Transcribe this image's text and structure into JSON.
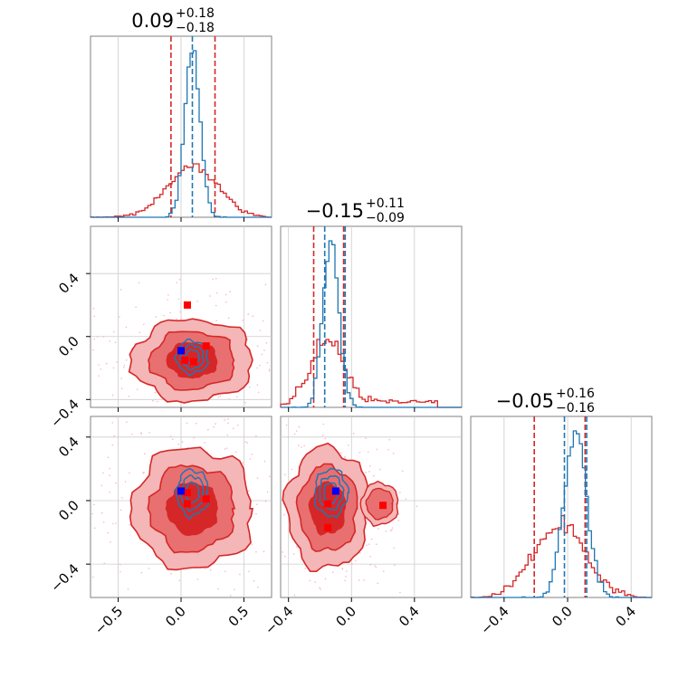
{
  "chart_data": {
    "type": "corner",
    "panel_titles": [
      {
        "value": "0.09",
        "plus": "+0.18",
        "minus": "−0.18"
      },
      {
        "value": "−0.15",
        "plus": "+0.11",
        "minus": "−0.09"
      },
      {
        "value": "−0.05",
        "plus": "+0.16",
        "minus": "−0.16"
      }
    ],
    "axes": {
      "p0": {
        "range": [
          -0.72,
          0.72
        ],
        "ticks": [
          -0.5,
          0.0,
          0.5
        ],
        "tick_labels": [
          "−0.5",
          "0.0",
          "0.5"
        ]
      },
      "p1": {
        "range": [
          -0.45,
          0.7
        ],
        "ticks": [
          -0.4,
          0.0,
          0.4
        ],
        "tick_labels": [
          "−0.4",
          "0.0",
          "0.4"
        ]
      },
      "p2": {
        "range": [
          -0.61,
          0.53
        ],
        "ticks": [
          -0.4,
          0.0,
          0.4
        ],
        "tick_labels": [
          "−0.4",
          "0.0",
          "0.4"
        ]
      }
    },
    "grid": true,
    "colors": {
      "red": "#d62728",
      "blue": "#1f77b4",
      "red_fill_light": "#f4b6b6",
      "red_fill_mid": "#e87070",
      "red_fill_dark": "#d62728",
      "scatter": "#f7b6d2"
    },
    "series": [
      {
        "color": "red",
        "means": [
          0.09,
          -0.15,
          -0.05
        ],
        "sds": [
          0.2,
          0.11,
          0.16
        ],
        "quantile_lines": {
          "p0": [
            -0.08,
            0.27
          ],
          "p1": [
            -0.24,
            -0.05
          ],
          "p2": [
            -0.21,
            0.11
          ]
        }
      },
      {
        "color": "blue",
        "means": [
          0.09,
          -0.13,
          0.05
        ],
        "sds": [
          0.06,
          0.05,
          0.07
        ],
        "quantile_lines": {
          "p0": [
            0.09
          ],
          "p1": [
            -0.17,
            -0.04
          ],
          "p2": [
            -0.02,
            0.12
          ]
        }
      }
    ],
    "markers": {
      "panel_p1_vs_p0": {
        "red": [
          [
            0.05,
            0.2
          ],
          [
            0.2,
            -0.06
          ],
          [
            0.1,
            -0.16
          ],
          [
            0.03,
            -0.15
          ]
        ],
        "blue": [
          [
            0.0,
            -0.09
          ]
        ]
      },
      "panel_p2_vs_p0": {
        "red": [
          [
            0.05,
            0.05
          ],
          [
            0.2,
            0.01
          ],
          [
            0.05,
            -0.02
          ]
        ],
        "blue": [
          [
            0.0,
            0.06
          ]
        ]
      },
      "panel_p2_vs_p1": {
        "red": [
          [
            0.2,
            -0.03
          ],
          [
            -0.15,
            -0.02
          ],
          [
            -0.15,
            -0.17
          ]
        ],
        "blue": [
          [
            -0.1,
            0.06
          ]
        ]
      }
    }
  }
}
